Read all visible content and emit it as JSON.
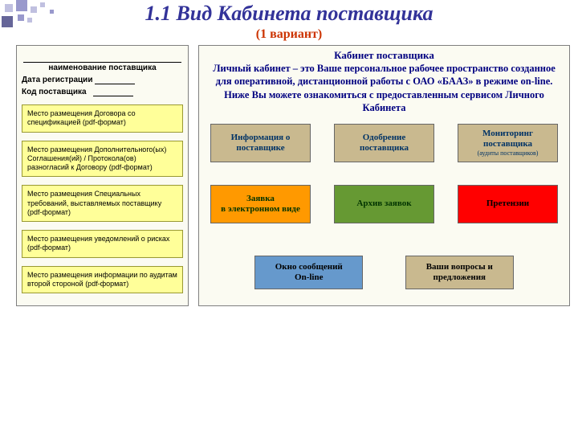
{
  "colors": {
    "title": "#333399",
    "subtitle": "#cc3300",
    "cabinet_text": "#000080",
    "panel_bg": "#fbfbf2",
    "panel_border": "#7f7f7f",
    "download_bg": "#ffff99",
    "download_border": "#999933",
    "deco_light": "#c0c0e0",
    "deco_mid": "#9999cc",
    "deco_dark": "#666699"
  },
  "header": {
    "title": "1.1 Вид Кабинета поставщика",
    "subtitle": "(1 вариант)"
  },
  "left": {
    "supplier_name_label": "наименование поставщика",
    "reg_date_label": "Дата регистрации",
    "supplier_code_label": "Код поставщика",
    "downloads": [
      "Место размещения Договора со спецификацией (pdf-формат)",
      "Место размещения Дополнительного(ых) Соглашения(ий) / Протокола(ов) разногласий к Договору (pdf-формат)",
      "Место размещения Специальных требований, выставляемых поставщику\n(pdf-формат)",
      "Место размещения уведомлений о рисках (pdf-формат)",
      "Место размещения информации по аудитам второй стороной (pdf-формат)"
    ]
  },
  "right": {
    "title": "Кабинет поставщика",
    "description": "Личный кабинет – это Ваше персональное рабочее пространство созданное для оперативной, дистанционной работы с ОАО «БААЗ» в режиме on-line. Ниже Вы можете ознакомиться с предоставленным сервисом Личного Кабинета",
    "tiles": {
      "info": {
        "label": "Информация о поставщике",
        "bg": "#c9b98f",
        "fg": "#003366"
      },
      "approval": {
        "label": "Одобрение поставщика",
        "bg": "#c9b98f",
        "fg": "#003366"
      },
      "monitoring": {
        "label": "Мониторинг поставщика",
        "sub": "(аудиты поставщиков)",
        "bg": "#c9b98f",
        "fg": "#003366"
      },
      "request": {
        "label": "Заявка\nв электронном виде",
        "bg": "#ff9900",
        "fg": "#003300"
      },
      "archive": {
        "label": "Архив заявок",
        "bg": "#669933",
        "fg": "#003300"
      },
      "claims": {
        "label": "Претензии",
        "bg": "#ff0000",
        "fg": "#000000"
      },
      "messages": {
        "label": "Окно сообщений\nOn-line",
        "bg": "#6699cc",
        "fg": "#000000"
      },
      "questions": {
        "label": "Ваши вопросы и предложения",
        "bg": "#c9b98f",
        "fg": "#000000"
      }
    }
  }
}
